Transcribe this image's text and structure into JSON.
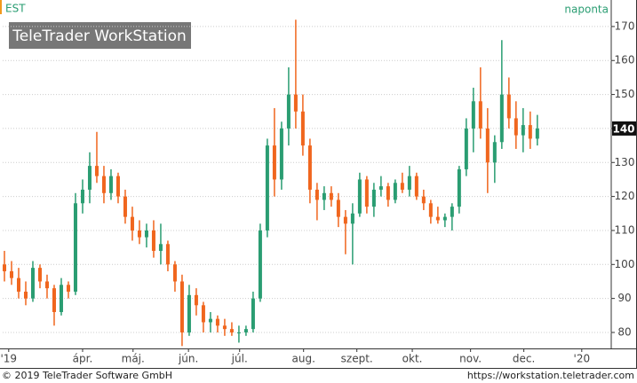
{
  "chart_data": {
    "type": "candlestick",
    "title": "EST",
    "subtitle": "naponta",
    "watermark": "TeleTrader WorkStation",
    "footer_left": "© 2019 TeleTrader Software GmbH",
    "footer_right": "https://workstation.teletrader.com",
    "up_color": "#2a9d72",
    "down_color": "#f0661e",
    "grid": true,
    "x": [
      0,
      1,
      2,
      3,
      4,
      5,
      6,
      7,
      8,
      9,
      10,
      11,
      12,
      13,
      14,
      15,
      16,
      17,
      18,
      19,
      20,
      21,
      22,
      23,
      24,
      25,
      26,
      27,
      28,
      29,
      30,
      31,
      32,
      33,
      34,
      35,
      36,
      37,
      38,
      39,
      40,
      41,
      42,
      43,
      44,
      45,
      46,
      47,
      48,
      49,
      50,
      51,
      52,
      53,
      54,
      55,
      56,
      57,
      58,
      59,
      60,
      61,
      62,
      63,
      64,
      65,
      66,
      67,
      68,
      69,
      70,
      71,
      72,
      73,
      74,
      75
    ],
    "open": [
      100,
      98,
      96,
      92,
      90,
      99,
      95,
      93,
      86,
      94,
      92,
      118,
      122,
      129,
      126,
      121,
      126,
      120,
      114,
      110,
      108,
      110,
      104,
      106,
      100,
      95,
      80,
      91,
      88,
      83,
      84,
      82,
      81,
      80,
      80,
      81,
      90,
      110,
      135,
      125,
      140,
      150,
      145,
      135,
      122,
      119,
      121,
      119,
      114,
      112,
      115,
      125,
      117,
      122,
      123,
      119,
      124,
      122,
      126,
      120,
      118,
      114,
      113,
      114,
      117,
      128,
      140,
      148,
      140,
      130,
      136,
      150,
      143,
      138,
      141,
      137
    ],
    "high": [
      104,
      101,
      99,
      95,
      101,
      100,
      97,
      94,
      96,
      95,
      121,
      125,
      133,
      139,
      129,
      128,
      127,
      122,
      117,
      113,
      112,
      113,
      112,
      107,
      101,
      97,
      94,
      93,
      89,
      86,
      85,
      84,
      83,
      82,
      82,
      92,
      112,
      137,
      146,
      142,
      158,
      172,
      150,
      137,
      124,
      123,
      123,
      121,
      116,
      118,
      127,
      126,
      124,
      126,
      124,
      125,
      127,
      129,
      127,
      122,
      119,
      117,
      115,
      118,
      129,
      143,
      152,
      158,
      146,
      138,
      166,
      155,
      148,
      146,
      145,
      144
    ],
    "low": [
      95,
      94,
      90,
      88,
      89,
      93,
      90,
      82,
      85,
      90,
      91,
      115,
      118,
      124,
      118,
      119,
      118,
      112,
      107,
      106,
      105,
      102,
      100,
      98,
      92,
      76,
      79,
      85,
      80,
      80,
      80,
      79,
      79,
      77,
      79,
      80,
      89,
      108,
      120,
      122,
      135,
      140,
      132,
      118,
      113,
      116,
      117,
      111,
      103,
      100,
      114,
      115,
      114,
      120,
      117,
      118,
      121,
      120,
      119,
      116,
      112,
      112,
      111,
      110,
      115,
      126,
      133,
      137,
      121,
      124,
      134,
      140,
      134,
      133,
      134,
      135
    ],
    "close": [
      98,
      96,
      92,
      90,
      99,
      95,
      93,
      86,
      94,
      92,
      118,
      122,
      129,
      126,
      121,
      126,
      120,
      114,
      110,
      108,
      110,
      104,
      106,
      100,
      95,
      80,
      91,
      88,
      83,
      84,
      82,
      81,
      80,
      80,
      81,
      90,
      110,
      135,
      125,
      140,
      150,
      145,
      135,
      122,
      119,
      121,
      119,
      114,
      112,
      115,
      125,
      117,
      122,
      123,
      119,
      124,
      122,
      126,
      120,
      118,
      114,
      113,
      114,
      117,
      128,
      140,
      148,
      140,
      130,
      136,
      150,
      143,
      138,
      141,
      137,
      140
    ],
    "xlim": [
      -0.25,
      85.4
    ],
    "xticks": [
      {
        "value": 0.6,
        "label": "'19"
      },
      {
        "value": 11,
        "label": "ápr."
      },
      {
        "value": 18.1,
        "label": "máj."
      },
      {
        "value": 25.9,
        "label": "jún."
      },
      {
        "value": 33.1,
        "label": "júl."
      },
      {
        "value": 42.1,
        "label": "aug."
      },
      {
        "value": 49.6,
        "label": "szept."
      },
      {
        "value": 57.4,
        "label": "okt."
      },
      {
        "value": 65.6,
        "label": "nov."
      },
      {
        "value": 73.1,
        "label": "dec."
      },
      {
        "value": 81.25,
        "label": "'20"
      }
    ],
    "ylim": [
      75.3,
      177.8
    ],
    "yticks": [
      80,
      90,
      100,
      110,
      120,
      130,
      140,
      150,
      160,
      170
    ]
  }
}
